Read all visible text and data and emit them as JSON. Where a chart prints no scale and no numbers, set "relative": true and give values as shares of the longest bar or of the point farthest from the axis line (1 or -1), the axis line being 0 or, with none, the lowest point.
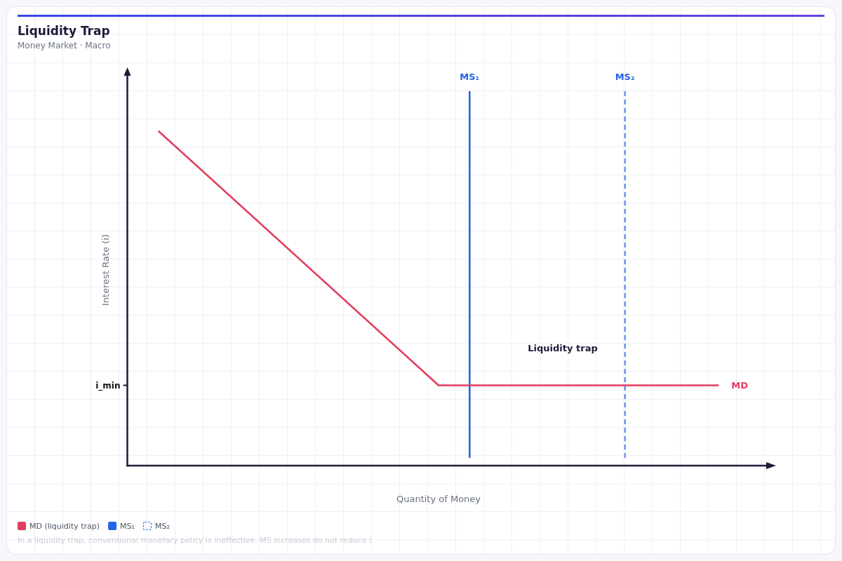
{
  "chart_data": {
    "type": "line",
    "title": "Liquidity Trap",
    "subtitle": "Money Market · Macro",
    "xlabel": "Quantity of Money",
    "ylabel": "Interest Rate (i)",
    "relative": true,
    "legend": "bottom left",
    "categories": [
      null,
      null,
      null
    ],
    "series": [
      {
        "name": "MD (liquidity trap)",
        "color": "#e23d5d",
        "values": [
          1,
          0.24,
          0.24
        ]
      }
    ],
    "annotations": [
      "i_min",
      "MS₁",
      "MS₂",
      "Liquidity trap",
      "MD",
      "MS₁",
      "MS₂",
      "In a liquidity trap, conventional monetary policy is ineffective: MS increases do not reduce i."
    ]
  }
}
